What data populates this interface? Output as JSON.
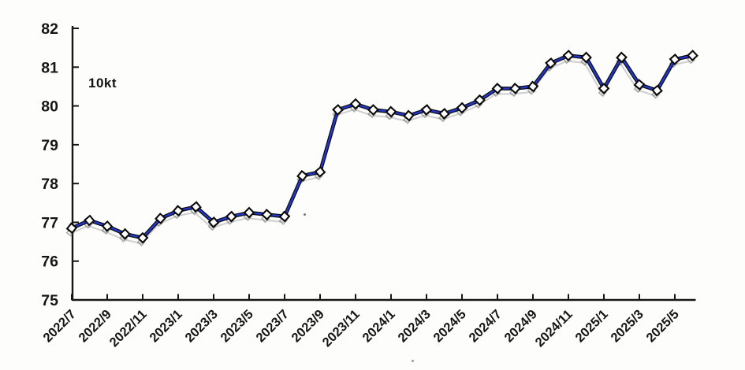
{
  "chart_data": {
    "type": "line",
    "unit_label": "10kt",
    "x": [
      "2022/7",
      "2022/8",
      "2022/9",
      "2022/10",
      "2022/11",
      "2022/12",
      "2023/1",
      "2023/2",
      "2023/3",
      "2023/4",
      "2023/5",
      "2023/6",
      "2023/7",
      "2023/8",
      "2023/9",
      "2023/10",
      "2023/11",
      "2023/12",
      "2024/1",
      "2024/2",
      "2024/3",
      "2024/4",
      "2024/5",
      "2024/6",
      "2024/7",
      "2024/8",
      "2024/9",
      "2024/10",
      "2024/11",
      "2024/12",
      "2025/1",
      "2025/2",
      "2025/3",
      "2025/4",
      "2025/5",
      "2025/6"
    ],
    "values": [
      76.85,
      77.05,
      76.9,
      76.7,
      76.6,
      77.1,
      77.3,
      77.4,
      77.0,
      77.15,
      77.25,
      77.2,
      77.15,
      78.2,
      78.3,
      79.9,
      80.05,
      79.9,
      79.85,
      79.75,
      79.9,
      79.8,
      79.95,
      80.15,
      80.45,
      80.45,
      80.5,
      81.1,
      81.3,
      81.25,
      80.45,
      81.25,
      80.55,
      80.4,
      81.2,
      81.3
    ],
    "x_tick_labels": [
      "2022/7",
      "2022/9",
      "2022/11",
      "2023/1",
      "2023/3",
      "2023/5",
      "2023/7",
      "2023/9",
      "2023/11",
      "2024/1",
      "2024/3",
      "2024/5",
      "2024/7",
      "2024/9",
      "2024/11",
      "2025/1",
      "2025/3",
      "2025/5"
    ],
    "yticks": [
      75,
      76,
      77,
      78,
      79,
      80,
      81,
      82
    ],
    "ylim": [
      75,
      82
    ],
    "grid": false,
    "legend": "none",
    "marker": "diamond",
    "colors": {
      "line": "#2438c8",
      "line_outline": "#0e0e18",
      "marker_fill": "#ffffff",
      "marker_stroke": "#0a0a0a",
      "axis": "#161616",
      "ghost": "#5a5a5a"
    }
  }
}
